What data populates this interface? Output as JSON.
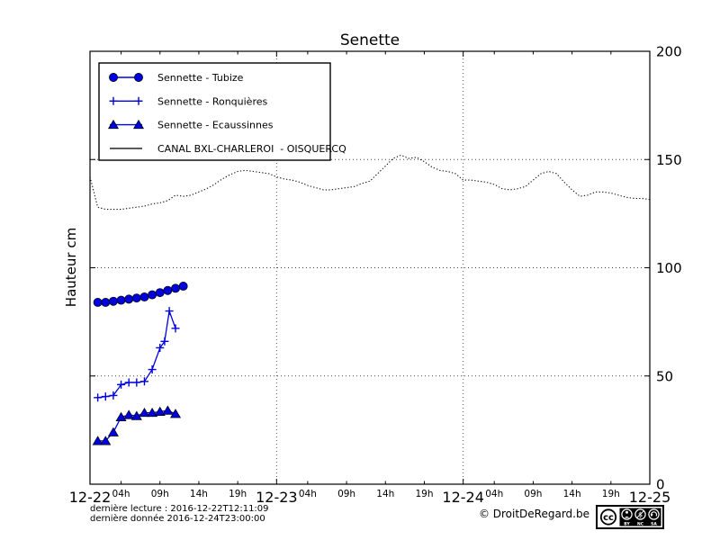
{
  "page": {
    "footer": {
      "line1": "dernière lecture : 2016-12-22T12:11:09",
      "line2": "dernière donnée  2016-12-24T23:00:00",
      "copyright": "© DroitDeRegard.be"
    },
    "cc_badge": {
      "logo": "cc",
      "labels": [
        "BY",
        "NC",
        "SA"
      ]
    }
  },
  "chart_data": {
    "type": "line",
    "title": "Senette",
    "ylabel": "Hauteur cm",
    "ylim": [
      0,
      200
    ],
    "y_ticks": [
      0,
      50,
      100,
      150,
      200
    ],
    "x_axis": {
      "total_hours": 72,
      "day_labels": [
        "12-22",
        "12-23",
        "12-24",
        "12-25"
      ],
      "hour_tick_hours": [
        4,
        9,
        14,
        19
      ],
      "hour_tick_labels": [
        "04h",
        "09h",
        "14h",
        "19h"
      ]
    },
    "grid": {
      "h_lines": [
        50,
        100,
        150
      ],
      "v_lines_hours": [
        24,
        48
      ]
    },
    "legend_position": "upper-left",
    "colors": {
      "series_blue": "#0000dd",
      "canal_black": "#111111"
    },
    "series": [
      {
        "id": "tubize",
        "name": "Sennette - Tubize",
        "color": "#0000dd",
        "marker": "circle",
        "style": "solid",
        "x_hours": [
          1,
          2,
          3,
          4,
          5,
          6,
          7,
          8,
          9,
          10,
          11,
          12
        ],
        "values": [
          84,
          84,
          84.5,
          85,
          85.5,
          86,
          86.5,
          87.5,
          88.5,
          89.5,
          90.5,
          91.5
        ]
      },
      {
        "id": "ronquieres",
        "name": "Sennette - Ronquières",
        "color": "#0000dd",
        "marker": "plus",
        "style": "solid",
        "x_hours": [
          1,
          2,
          3,
          4,
          5,
          6,
          7,
          8,
          9,
          9.6,
          10.2,
          11
        ],
        "values": [
          40,
          40.5,
          41,
          46,
          47,
          47,
          47.5,
          53,
          63,
          66,
          80,
          72
        ]
      },
      {
        "id": "ecaussinnes",
        "name": "Sennette - Ecaussinnes",
        "color": "#0000dd",
        "marker": "triangle",
        "style": "solid",
        "x_hours": [
          1,
          2,
          3,
          4,
          5,
          6,
          7,
          8,
          9,
          10,
          11
        ],
        "values": [
          20,
          20,
          24,
          31,
          32,
          31.5,
          33,
          33,
          33.5,
          34,
          32.5
        ]
      },
      {
        "id": "canal",
        "name": "CANAL BXL-CHARLEROI  - OISQUERCQ",
        "color": "#111111",
        "marker": "none",
        "style": "dotted",
        "x_hours": [
          0,
          1,
          2,
          3,
          4,
          5,
          6,
          7,
          8,
          9,
          10,
          11,
          12,
          13,
          14,
          15,
          16,
          17,
          18,
          19,
          20,
          21,
          22,
          23,
          24,
          25,
          26,
          27,
          28,
          29,
          30,
          31,
          32,
          33,
          34,
          35,
          36,
          37,
          38,
          39,
          40,
          41,
          42,
          43,
          44,
          45,
          46,
          47,
          48,
          49,
          50,
          51,
          52,
          53,
          54,
          55,
          56,
          57,
          58,
          59,
          60,
          61,
          62,
          63,
          64,
          65,
          66,
          67,
          68,
          69,
          70,
          71,
          72
        ],
        "values": [
          142,
          128,
          127,
          127,
          127,
          127.5,
          128,
          128.5,
          129.5,
          130,
          131,
          133.5,
          133,
          133.5,
          135,
          136.5,
          138.5,
          141,
          143,
          144.5,
          145,
          144.5,
          144,
          143.5,
          142,
          141,
          140.5,
          139.5,
          138,
          137,
          136,
          136,
          136.5,
          137,
          137.5,
          139,
          140,
          143.5,
          147,
          150.5,
          152,
          150.5,
          151,
          149,
          146.5,
          145,
          144.5,
          143.5,
          140.5,
          140.5,
          140,
          139.5,
          138.5,
          136.5,
          136,
          136.5,
          137.5,
          140.5,
          143.5,
          144.5,
          143.5,
          139.5,
          136,
          133,
          133.5,
          135,
          135,
          134.5,
          133.5,
          132.5,
          132,
          132,
          131.5
        ]
      }
    ]
  }
}
